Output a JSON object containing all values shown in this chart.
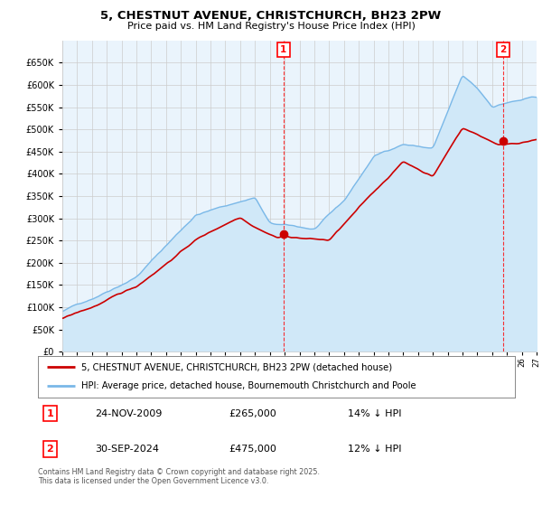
{
  "title": "5, CHESTNUT AVENUE, CHRISTCHURCH, BH23 2PW",
  "subtitle": "Price paid vs. HM Land Registry's House Price Index (HPI)",
  "ylim": [
    0,
    700000
  ],
  "yticks": [
    0,
    50000,
    100000,
    150000,
    200000,
    250000,
    300000,
    350000,
    400000,
    450000,
    500000,
    550000,
    600000,
    650000
  ],
  "hpi_color": "#7ab8e8",
  "hpi_fill_color": "#d0e8f8",
  "property_color": "#cc0000",
  "transaction1_date": 2009.92,
  "transaction1_price": 265000,
  "transaction1_label": "1",
  "transaction2_date": 2024.75,
  "transaction2_price": 475000,
  "transaction2_label": "2",
  "xmin": 1995,
  "xmax": 2027,
  "legend_property": "5, CHESTNUT AVENUE, CHRISTCHURCH, BH23 2PW (detached house)",
  "legend_hpi": "HPI: Average price, detached house, Bournemouth Christchurch and Poole",
  "table_row1": [
    "1",
    "24-NOV-2009",
    "£265,000",
    "14% ↓ HPI"
  ],
  "table_row2": [
    "2",
    "30-SEP-2024",
    "£475,000",
    "12% ↓ HPI"
  ],
  "footer": "Contains HM Land Registry data © Crown copyright and database right 2025.\nThis data is licensed under the Open Government Licence v3.0.",
  "background_color": "#ffffff",
  "grid_color": "#cccccc",
  "chart_bg": "#eaf4fc"
}
